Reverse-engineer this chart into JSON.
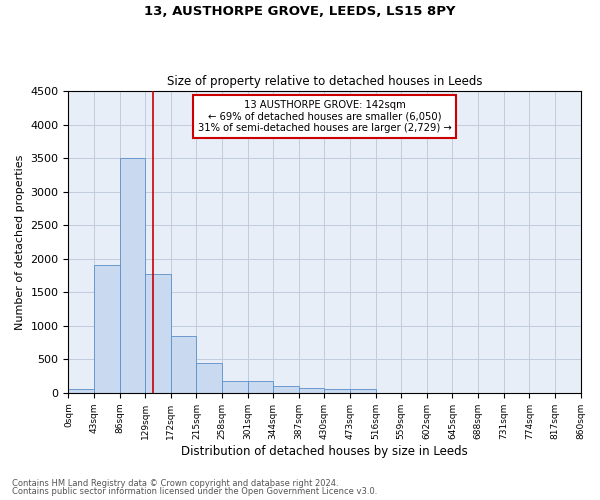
{
  "title1": "13, AUSTHORPE GROVE, LEEDS, LS15 8PY",
  "title2": "Size of property relative to detached houses in Leeds",
  "xlabel": "Distribution of detached houses by size in Leeds",
  "ylabel": "Number of detached properties",
  "bar_edges": [
    0,
    43,
    86,
    129,
    172,
    215,
    258,
    301,
    344,
    387,
    430,
    473,
    516,
    559,
    602,
    645,
    688,
    731,
    774,
    817,
    860
  ],
  "bar_heights": [
    50,
    1900,
    3500,
    1775,
    850,
    450,
    175,
    170,
    100,
    65,
    60,
    55,
    0,
    0,
    0,
    0,
    0,
    0,
    0,
    0
  ],
  "bar_color": "#c9d9f0",
  "bar_edge_color": "#5b8fc9",
  "vline_x": 142,
  "vline_color": "#cc0000",
  "annotation_line1": "13 AUSTHORPE GROVE: 142sqm",
  "annotation_line2": "← 69% of detached houses are smaller (6,050)",
  "annotation_line3": "31% of semi-detached houses are larger (2,729) →",
  "annotation_box_color": "#cc0000",
  "ylim": [
    0,
    4500
  ],
  "yticks": [
    0,
    500,
    1000,
    1500,
    2000,
    2500,
    3000,
    3500,
    4000,
    4500
  ],
  "grid_color": "#c0ccdd",
  "bg_color": "#e8eef7",
  "fig_bg_color": "#ffffff",
  "footer1": "Contains HM Land Registry data © Crown copyright and database right 2024.",
  "footer2": "Contains public sector information licensed under the Open Government Licence v3.0."
}
